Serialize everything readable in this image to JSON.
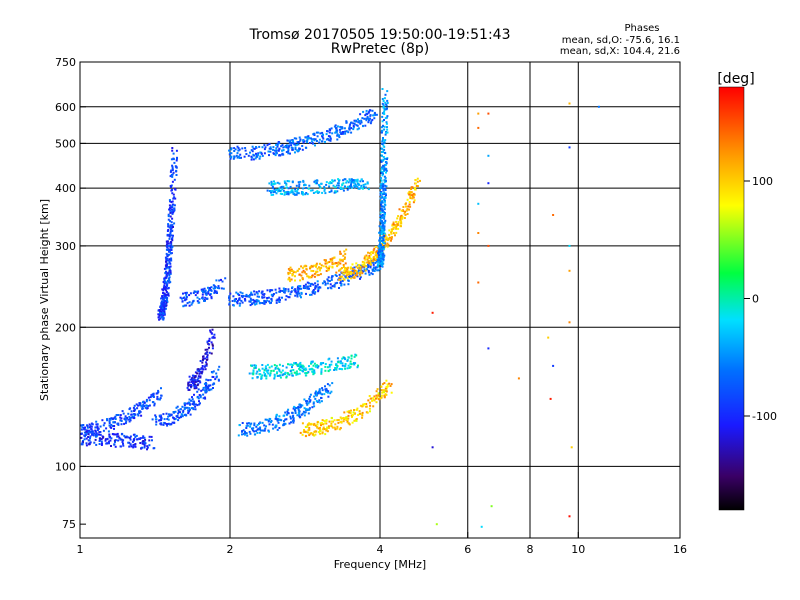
{
  "chart_data": {
    "type": "scatter",
    "title": "Tromsø 20170505 19:50:00-19:51:43",
    "subtitle": "RwPretec (8p)",
    "xlabel": "Frequency [MHz]",
    "ylabel": "Stationary phase Virtual Height [km]",
    "x_scale": "log",
    "y_scale": "log",
    "xlim": [
      1,
      16
    ],
    "ylim": [
      70,
      750
    ],
    "x_ticks": [
      "1",
      "2",
      "4",
      "6",
      "8",
      "10",
      "16"
    ],
    "x_gridlines": [
      2,
      4,
      6,
      8,
      10
    ],
    "y_ticks": [
      "75",
      "100",
      "200",
      "300",
      "400",
      "500",
      "600",
      "750"
    ],
    "y_gridlines": [
      100,
      200,
      300,
      400,
      500,
      600
    ],
    "grid": true,
    "info": {
      "heading": "Phases",
      "line1": "mean, sd,O: -75.6, 16.1",
      "line2": "mean, sd,X: 104.4, 21.6"
    },
    "colorbar": {
      "label": "[deg]",
      "range": [
        -180,
        180
      ],
      "ticks": [
        "100",
        "0",
        "-100"
      ],
      "tick_values": [
        100,
        0,
        -100
      ]
    },
    "traces": [
      {
        "f": [
          1.0,
          1.4
        ],
        "h": [
          115,
          112
        ],
        "phase": -95
      },
      {
        "f": [
          1.0,
          1.45
        ],
        "h": [
          120,
          145
        ],
        "phase": -85
      },
      {
        "f": [
          1.4,
          1.9
        ],
        "h": [
          125,
          160
        ],
        "phase": -80
      },
      {
        "f": [
          1.45,
          1.55
        ],
        "h": [
          215,
          480
        ],
        "phase": -90
      },
      {
        "f": [
          1.6,
          1.95
        ],
        "h": [
          230,
          250
        ],
        "phase": -80
      },
      {
        "f": [
          1.65,
          1.85
        ],
        "h": [
          150,
          195
        ],
        "phase": -110
      },
      {
        "f": [
          2.0,
          4.0
        ],
        "h": [
          230,
          275
        ],
        "phase": -75
      },
      {
        "f": [
          2.0,
          3.9
        ],
        "h": [
          475,
          580
        ],
        "phase": -70
      },
      {
        "f": [
          2.4,
          3.8
        ],
        "h": [
          400,
          410
        ],
        "phase": -40
      },
      {
        "f": [
          3.3,
          4.8
        ],
        "h": [
          260,
          420
        ],
        "phase": 110
      },
      {
        "f": [
          2.6,
          3.4
        ],
        "h": [
          260,
          285
        ],
        "phase": 115
      },
      {
        "f": [
          2.1,
          3.2
        ],
        "h": [
          120,
          150
        ],
        "phase": -60
      },
      {
        "f": [
          2.8,
          4.2
        ],
        "h": [
          120,
          150
        ],
        "phase": 100
      },
      {
        "f": [
          2.2,
          3.6
        ],
        "h": [
          160,
          170
        ],
        "phase": -20
      },
      {
        "f": [
          4.0,
          4.1
        ],
        "h": [
          280,
          640
        ],
        "phase": -50
      }
    ],
    "scatter": [
      {
        "f": 6.3,
        "h": 580,
        "phase": 120
      },
      {
        "f": 6.3,
        "h": 540,
        "phase": 140
      },
      {
        "f": 6.3,
        "h": 370,
        "phase": -30
      },
      {
        "f": 6.3,
        "h": 320,
        "phase": 130
      },
      {
        "f": 6.3,
        "h": 250,
        "phase": 140
      },
      {
        "f": 6.6,
        "h": 580,
        "phase": 150
      },
      {
        "f": 6.6,
        "h": 470,
        "phase": -40
      },
      {
        "f": 6.6,
        "h": 410,
        "phase": -100
      },
      {
        "f": 6.6,
        "h": 300,
        "phase": 150
      },
      {
        "f": 6.6,
        "h": 180,
        "phase": -100
      },
      {
        "f": 6.7,
        "h": 82,
        "phase": 50
      },
      {
        "f": 6.4,
        "h": 74,
        "phase": -20
      },
      {
        "f": 7.6,
        "h": 155,
        "phase": 130
      },
      {
        "f": 8.7,
        "h": 190,
        "phase": 100
      },
      {
        "f": 8.9,
        "h": 165,
        "phase": -90
      },
      {
        "f": 8.8,
        "h": 140,
        "phase": 170
      },
      {
        "f": 8.9,
        "h": 350,
        "phase": 140
      },
      {
        "f": 9.6,
        "h": 610,
        "phase": 110
      },
      {
        "f": 9.6,
        "h": 490,
        "phase": -90
      },
      {
        "f": 9.6,
        "h": 300,
        "phase": -20
      },
      {
        "f": 9.6,
        "h": 265,
        "phase": 120
      },
      {
        "f": 9.6,
        "h": 205,
        "phase": 130
      },
      {
        "f": 9.7,
        "h": 110,
        "phase": 100
      },
      {
        "f": 9.6,
        "h": 78,
        "phase": 175
      },
      {
        "f": 11.0,
        "h": 600,
        "phase": -60
      },
      {
        "f": 5.1,
        "h": 215,
        "phase": 170
      },
      {
        "f": 5.2,
        "h": 75,
        "phase": 60
      },
      {
        "f": 5.1,
        "h": 110,
        "phase": -120
      }
    ]
  }
}
